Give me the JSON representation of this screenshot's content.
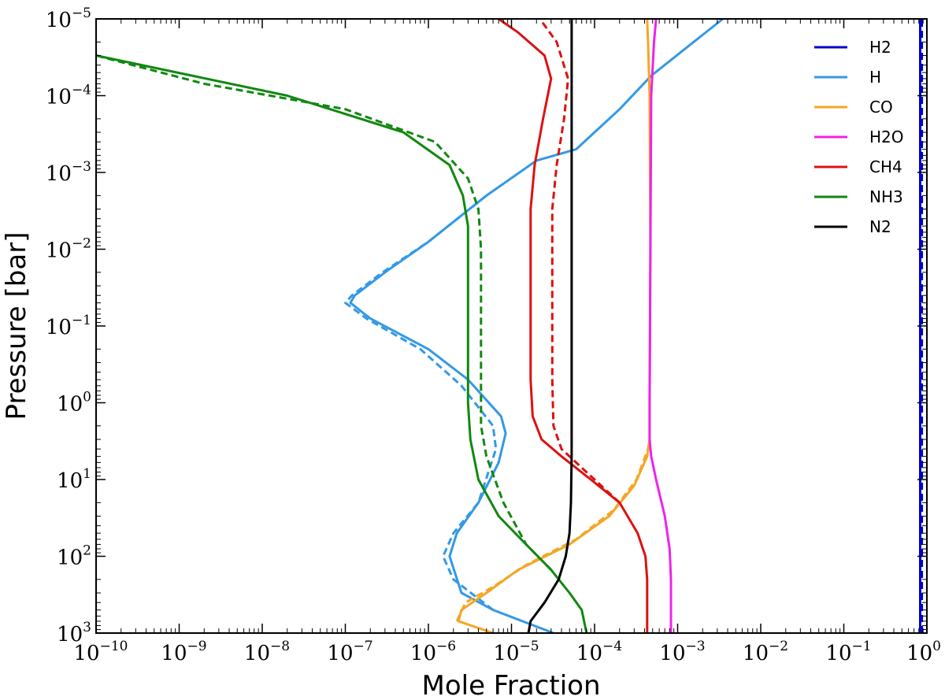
{
  "chart_data": {
    "type": "line",
    "xlabel": "Mole Fraction",
    "ylabel": "Pressure [bar]",
    "xscale": "log",
    "yscale": "log",
    "xlim": [
      1e-10,
      1
    ],
    "ylim": [
      1000,
      1e-05
    ],
    "y_inverted": true,
    "grid": false,
    "legend_position": "top-right",
    "x_ticks": [
      {
        "base": "10",
        "exp": "−10"
      },
      {
        "base": "10",
        "exp": "−9"
      },
      {
        "base": "10",
        "exp": "−8"
      },
      {
        "base": "10",
        "exp": "−7"
      },
      {
        "base": "10",
        "exp": "−6"
      },
      {
        "base": "10",
        "exp": "−5"
      },
      {
        "base": "10",
        "exp": "−4"
      },
      {
        "base": "10",
        "exp": "−3"
      },
      {
        "base": "10",
        "exp": "−2"
      },
      {
        "base": "10",
        "exp": "−1"
      },
      {
        "base": "10",
        "exp": "0"
      }
    ],
    "y_ticks": [
      {
        "base": "10",
        "exp": "−5"
      },
      {
        "base": "10",
        "exp": "−4"
      },
      {
        "base": "10",
        "exp": "−3"
      },
      {
        "base": "10",
        "exp": "−2"
      },
      {
        "base": "10",
        "exp": "−1"
      },
      {
        "base": "10",
        "exp": "0"
      },
      {
        "base": "10",
        "exp": "1"
      },
      {
        "base": "10",
        "exp": "2"
      },
      {
        "base": "10",
        "exp": "3"
      }
    ],
    "series": [
      {
        "name": "H2",
        "color": "#0000cc",
        "legend": true,
        "style": "solid",
        "points": [
          [
            0.83,
            1000
          ],
          [
            0.83,
            1e-05
          ]
        ]
      },
      {
        "name": "H2",
        "color": "#0000cc",
        "legend": false,
        "style": "dashed",
        "points": [
          [
            0.87,
            1000
          ],
          [
            0.87,
            1e-05
          ]
        ]
      },
      {
        "name": "H",
        "color": "#3399e6",
        "legend": true,
        "style": "solid",
        "points": [
          [
            3.2e-05,
            1000
          ],
          [
            6e-06,
            500
          ],
          [
            2.5e-06,
            300
          ],
          [
            1.8e-06,
            100
          ],
          [
            2.2e-06,
            50
          ],
          [
            4e-06,
            20
          ],
          [
            7e-06,
            6
          ],
          [
            8.5e-06,
            2.5
          ],
          [
            7.5e-06,
            1.5
          ],
          [
            3e-06,
            0.5
          ],
          [
            1e-06,
            0.2
          ],
          [
            2e-07,
            0.08
          ],
          [
            1.15e-07,
            0.05
          ],
          [
            1.3e-07,
            0.04
          ],
          [
            3e-07,
            0.02
          ],
          [
            1e-06,
            0.008
          ],
          [
            5e-06,
            0.002
          ],
          [
            2e-05,
            0.0007
          ],
          [
            6e-05,
            0.0005
          ],
          [
            0.0001,
            0.0003
          ],
          [
            0.0002,
            0.00015
          ],
          [
            0.00048,
            5.5e-05
          ],
          [
            0.0012,
            2.5e-05
          ],
          [
            0.0035,
            1e-05
          ]
        ]
      },
      {
        "name": "H",
        "color": "#3399e6",
        "legend": false,
        "style": "dashed",
        "points": [
          [
            6e-06,
            500
          ],
          [
            2e-06,
            200
          ],
          [
            1.5e-06,
            100
          ],
          [
            2e-06,
            50
          ],
          [
            4e-06,
            20
          ],
          [
            6.5e-06,
            4
          ],
          [
            6e-06,
            2
          ],
          [
            2.5e-06,
            0.6
          ],
          [
            8e-07,
            0.2
          ],
          [
            1.8e-07,
            0.08
          ],
          [
            1e-07,
            0.05
          ],
          [
            1.2e-07,
            0.04
          ],
          [
            2.8e-07,
            0.02
          ],
          [
            1e-06,
            0.008
          ],
          [
            5e-06,
            0.002
          ]
        ]
      },
      {
        "name": "CO",
        "color": "#f5a623",
        "legend": true,
        "style": "solid",
        "points": [
          [
            6e-06,
            1000
          ],
          [
            2.3e-06,
            700
          ],
          [
            2.5e-06,
            500
          ],
          [
            5e-06,
            300
          ],
          [
            1.2e-05,
            150
          ],
          [
            5e-05,
            70
          ],
          [
            0.00015,
            30
          ],
          [
            0.0003,
            12
          ],
          [
            0.00043,
            5
          ],
          [
            0.00046,
            3
          ],
          [
            0.00046,
            1
          ],
          [
            0.00047,
            0.01
          ],
          [
            0.00046,
            0.0001
          ],
          [
            0.00044,
            2e-05
          ],
          [
            0.00043,
            1e-05
          ]
        ]
      },
      {
        "name": "CO",
        "color": "#f5a623",
        "legend": false,
        "style": "dashed",
        "points": [
          [
            2.2e-06,
            700
          ],
          [
            2.8e-06,
            400
          ],
          [
            6e-06,
            250
          ],
          [
            1.5e-05,
            130
          ],
          [
            6e-05,
            60
          ],
          [
            0.00017,
            25
          ],
          [
            0.00032,
            10
          ],
          [
            0.00044,
            4
          ],
          [
            0.00046,
            3
          ]
        ]
      },
      {
        "name": "H2O",
        "color": "#ee22ee",
        "legend": true,
        "style": "solid",
        "points": [
          [
            0.00083,
            1000
          ],
          [
            0.00083,
            200
          ],
          [
            0.0008,
            80
          ],
          [
            0.0007,
            30
          ],
          [
            0.00055,
            10
          ],
          [
            0.00048,
            5
          ],
          [
            0.00046,
            3
          ],
          [
            0.00046,
            1
          ],
          [
            0.00047,
            0.01
          ],
          [
            0.00048,
            0.0001
          ],
          [
            0.00052,
            2e-05
          ],
          [
            0.00055,
            1e-05
          ]
        ]
      },
      {
        "name": "CH4",
        "color": "#dd1111",
        "legend": true,
        "style": "solid",
        "points": [
          [
            0.00043,
            1000
          ],
          [
            0.00043,
            200
          ],
          [
            0.00041,
            100
          ],
          [
            0.00033,
            50
          ],
          [
            0.0002,
            20
          ],
          [
            9e-05,
            10
          ],
          [
            4e-05,
            5
          ],
          [
            2.3e-05,
            3
          ],
          [
            1.8e-05,
            1.5
          ],
          [
            1.7e-05,
            0.5
          ],
          [
            1.7e-05,
            0.003
          ],
          [
            1.9e-05,
            0.0008
          ],
          [
            2.4e-05,
            0.0002
          ],
          [
            3e-05,
            6e-05
          ],
          [
            2.5e-05,
            3e-05
          ],
          [
            1.2e-05,
            1.5e-05
          ],
          [
            7e-06,
            1e-05
          ]
        ]
      },
      {
        "name": "CH4",
        "color": "#dd1111",
        "legend": false,
        "style": "dashed",
        "points": [
          [
            0.0002,
            20
          ],
          [
            8e-05,
            8
          ],
          [
            4e-05,
            4
          ],
          [
            3.2e-05,
            2
          ],
          [
            3.1e-05,
            0.5
          ],
          [
            3.1e-05,
            0.003
          ],
          [
            3.5e-05,
            0.0008
          ],
          [
            4.3e-05,
            0.0002
          ],
          [
            4.8e-05,
            6e-05
          ],
          [
            3.5e-05,
            2e-05
          ],
          [
            2.2e-05,
            1e-05
          ]
        ]
      },
      {
        "name": "NH3",
        "color": "#118811",
        "legend": true,
        "style": "solid",
        "points": [
          [
            8e-05,
            1000
          ],
          [
            7e-05,
            500
          ],
          [
            5e-05,
            300
          ],
          [
            3e-05,
            150
          ],
          [
            1.5e-05,
            70
          ],
          [
            7e-06,
            30
          ],
          [
            4e-06,
            10
          ],
          [
            3.2e-06,
            3
          ],
          [
            3e-06,
            1
          ],
          [
            3e-06,
            0.1
          ],
          [
            3e-06,
            0.005
          ],
          [
            2.6e-06,
            0.002
          ],
          [
            1.8e-06,
            0.0008
          ],
          [
            5e-07,
            0.0003
          ],
          [
            2e-08,
            0.0001
          ],
          [
            1e-10,
            3e-05
          ]
        ]
      },
      {
        "name": "NH3",
        "color": "#118811",
        "legend": false,
        "style": "dashed",
        "points": [
          [
            3e-05,
            150
          ],
          [
            1.5e-05,
            70
          ],
          [
            8e-06,
            20
          ],
          [
            5e-06,
            5
          ],
          [
            4.3e-06,
            2
          ],
          [
            4.3e-06,
            0.01
          ],
          [
            4e-06,
            0.003
          ],
          [
            3e-06,
            0.0012
          ],
          [
            1.2e-06,
            0.0004
          ],
          [
            1e-07,
            0.00015
          ],
          [
            2e-09,
            7e-05
          ],
          [
            1e-10,
            3e-05
          ]
        ]
      },
      {
        "name": "N2",
        "color": "#000000",
        "legend": true,
        "style": "solid",
        "points": [
          [
            1.6e-05,
            1000
          ],
          [
            1.7e-05,
            700
          ],
          [
            2.5e-05,
            400
          ],
          [
            3.7e-05,
            200
          ],
          [
            4.5e-05,
            100
          ],
          [
            5e-05,
            50
          ],
          [
            5.2e-05,
            20
          ],
          [
            5.3e-05,
            5
          ],
          [
            5.3e-05,
            1
          ],
          [
            5.3e-05,
            1e-05
          ]
        ]
      }
    ]
  }
}
